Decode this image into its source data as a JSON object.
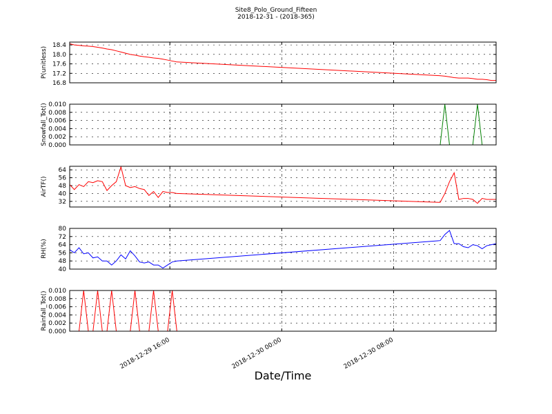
{
  "title": "Site8_Polo_Ground_Fifteen",
  "subtitle": "2018-12-31 - (2018-365)",
  "xlabel": "Date/Time",
  "x": [
    "2018-12-29 08:50",
    "2018-12-29 09:10",
    "2018-12-29 09:30",
    "2018-12-29 09:50",
    "2018-12-29 10:10",
    "2018-12-29 10:30",
    "2018-12-29 10:50",
    "2018-12-29 11:10",
    "2018-12-29 11:30",
    "2018-12-29 11:50",
    "2018-12-29 12:10",
    "2018-12-29 12:30",
    "2018-12-29 12:50",
    "2018-12-29 13:10",
    "2018-12-29 13:30",
    "2018-12-29 13:50",
    "2018-12-29 14:10",
    "2018-12-29 14:30",
    "2018-12-29 14:50",
    "2018-12-29 15:10",
    "2018-12-29 15:30",
    "2018-12-29 15:50",
    "2018-12-29 16:10",
    "2018-12-29 16:30",
    "2018-12-30 11:20",
    "2018-12-30 11:40",
    "2018-12-30 12:00",
    "2018-12-30 12:20",
    "2018-12-30 12:40",
    "2018-12-30 13:00",
    "2018-12-30 13:20",
    "2018-12-30 13:40",
    "2018-12-30 14:00",
    "2018-12-30 14:20",
    "2018-12-30 14:40",
    "2018-12-30 15:00",
    "2018-12-30 15:20"
  ],
  "xlim": [
    "2018-12-29 08:50",
    "2018-12-30 15:20"
  ],
  "xticks": [
    {
      "value": "2018-12-29 16:00",
      "label": "2018-12-29 16:00"
    },
    {
      "value": "2018-12-30 00:00",
      "label": "2018-12-30 00:00"
    },
    {
      "value": "2018-12-30 08:00",
      "label": "2018-12-30 08:00"
    }
  ],
  "chart_data": [
    {
      "type": "line",
      "ylabel": "P(unitless)",
      "ylim": [
        16.8,
        18.52
      ],
      "grid": true,
      "yticks": [
        16.8,
        17.2,
        17.6,
        {
          "value": 18,
          "label": "18.0"
        },
        18.4
      ],
      "series": [
        {
          "color": "#ff0000",
          "values": [
            18.45,
            18.4,
            18.38,
            18.36,
            18.35,
            18.33,
            18.3,
            18.27,
            18.23,
            18.2,
            18.15,
            18.1,
            18.05,
            18,
            17.97,
            17.93,
            17.9,
            17.88,
            17.85,
            17.83,
            17.8,
            17.76,
            17.72,
            17.68,
            17.1,
            17.08,
            17.05,
            17.02,
            17,
            17,
            17,
            16.98,
            16.95,
            16.95,
            16.93,
            16.9,
            16.9
          ]
        }
      ]
    },
    {
      "type": "line",
      "ylabel": "Snowfall_Tot()",
      "ylim": [
        0,
        0.01
      ],
      "grid": true,
      "yticks": [
        {
          "value": 0,
          "label": "0.000"
        },
        {
          "value": 0.002,
          "label": "0.002"
        },
        {
          "value": 0.004,
          "label": "0.004"
        },
        {
          "value": 0.006,
          "label": "0.006"
        },
        {
          "value": 0.008,
          "label": "0.008"
        },
        {
          "value": 0.01,
          "label": "0.010"
        }
      ],
      "series": [
        {
          "color": "#007f00",
          "values": [
            0,
            0,
            0,
            0,
            0,
            0,
            0,
            0,
            0,
            0,
            0,
            0,
            0,
            0,
            0,
            0,
            0,
            0,
            0,
            0,
            0,
            0,
            0,
            0,
            0,
            0.01,
            0,
            0,
            0,
            0,
            0,
            0,
            0.01,
            0,
            0,
            0,
            0
          ]
        }
      ]
    },
    {
      "type": "line",
      "ylabel": "AirTF()",
      "ylim": [
        26.3,
        67.6
      ],
      "grid": true,
      "yticks": [
        32,
        40,
        48,
        56,
        64
      ],
      "series": [
        {
          "color": "#ff0000",
          "values": [
            49,
            44,
            49,
            47,
            52,
            51,
            53,
            52,
            43,
            48,
            52,
            67,
            48,
            46,
            47,
            45,
            44,
            38,
            42,
            36,
            42,
            41,
            41,
            40,
            31,
            40,
            52,
            61,
            34,
            35,
            35,
            34,
            30,
            35,
            34,
            34,
            34
          ]
        }
      ]
    },
    {
      "type": "line",
      "ylabel": "RH(%)",
      "ylim": [
        40,
        80
      ],
      "grid": true,
      "yticks": [
        40,
        48,
        56,
        64,
        72,
        80
      ],
      "series": [
        {
          "color": "#0000ff",
          "values": [
            59,
            56,
            61,
            55,
            56,
            51,
            52,
            48,
            48,
            44,
            48,
            54,
            50,
            58,
            53,
            47,
            46,
            47,
            44,
            44,
            41,
            44,
            47,
            48,
            68,
            74,
            78,
            65,
            65,
            62,
            61,
            64,
            63,
            60,
            63,
            64,
            65
          ]
        }
      ]
    },
    {
      "type": "line",
      "ylabel": "Rainfall_Tot()",
      "ylim": [
        0,
        0.01
      ],
      "grid": true,
      "yticks": [
        {
          "value": 0,
          "label": "0.000"
        },
        {
          "value": 0.002,
          "label": "0.002"
        },
        {
          "value": 0.004,
          "label": "0.004"
        },
        {
          "value": 0.006,
          "label": "0.006"
        },
        {
          "value": 0.008,
          "label": "0.008"
        },
        {
          "value": 0.01,
          "label": "0.010"
        }
      ],
      "series": [
        {
          "color": "#ff0000",
          "values": [
            0,
            0,
            0,
            0.01,
            0,
            0,
            0.01,
            0,
            0,
            0.01,
            0,
            0,
            0,
            0,
            0.01,
            0,
            0,
            0,
            0.01,
            0,
            0,
            0,
            0.01,
            0,
            0,
            0,
            0,
            0,
            0,
            0,
            0,
            0,
            0,
            0,
            0,
            0,
            0
          ]
        }
      ]
    }
  ]
}
